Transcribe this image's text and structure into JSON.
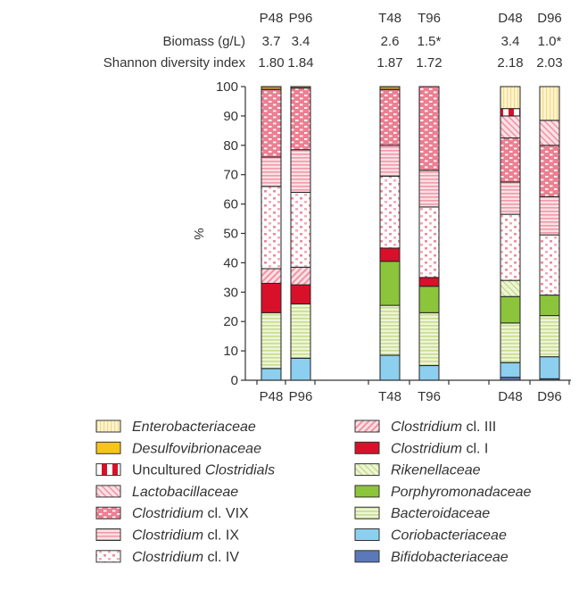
{
  "chart_data": {
    "type": "bar",
    "stacked": true,
    "ylabel": "%",
    "ylim": [
      0,
      100
    ],
    "yticks": [
      0,
      10,
      20,
      30,
      40,
      50,
      60,
      70,
      80,
      90,
      100
    ],
    "categories": [
      "P48",
      "P96",
      "T48",
      "T96",
      "D48",
      "D96"
    ],
    "header_rows": [
      {
        "label": "Biomass (g/L)",
        "values": [
          "3.7",
          "3.4",
          "2.6",
          "1.5*",
          "3.4",
          "1.0*"
        ]
      },
      {
        "label": "Shannon diversity index",
        "values": [
          "1.80",
          "1.84",
          "1.87",
          "1.72",
          "2.18",
          "2.03"
        ]
      }
    ],
    "series": [
      {
        "key": "bif",
        "name": "Bifidobacteriaceae",
        "color": "#5b78b8",
        "values": [
          0,
          0,
          0,
          0,
          1,
          0.5
        ]
      },
      {
        "key": "cor",
        "name": "Coriobacteriaceae",
        "color": "#8ccfef",
        "values": [
          4,
          7.5,
          8.5,
          5,
          5,
          7.5
        ]
      },
      {
        "key": "bac",
        "name": "Bacteroidaceae",
        "color": "#e6f0c8",
        "values": [
          19,
          18.5,
          17,
          18,
          13.5,
          14
        ]
      },
      {
        "key": "por",
        "name": "Porphyromonadaceae",
        "color": "#8cc43c",
        "values": [
          0,
          0,
          15,
          9,
          9,
          7
        ]
      },
      {
        "key": "rik",
        "name": "Rikenellaceae",
        "color": "#e6f0c8",
        "values": [
          0,
          0,
          0,
          0,
          5.5,
          0
        ]
      },
      {
        "key": "c1",
        "name": "Clostridium cl. I",
        "color": "#d9102a",
        "values": [
          10,
          6.5,
          4.5,
          3,
          0,
          0
        ]
      },
      {
        "key": "c3",
        "name": "Clostridium cl. III",
        "color": "#f4b8c2",
        "values": [
          5,
          6,
          0,
          0,
          0,
          0
        ]
      },
      {
        "key": "c4",
        "name": "Clostridium cl. IV",
        "color": "#fbe3e8",
        "values": [
          28,
          25.5,
          24.5,
          24,
          22.5,
          20.5
        ]
      },
      {
        "key": "c9",
        "name": "Clostridium cl. IX",
        "color": "#f8c8d0",
        "values": [
          10,
          14.5,
          10.5,
          12.5,
          11,
          13
        ]
      },
      {
        "key": "c19",
        "name": "Clostridium cl. VIX",
        "color": "#ee8a9a",
        "values": [
          23,
          21,
          19,
          28.5,
          15,
          17.5
        ]
      },
      {
        "key": "lac",
        "name": "Lactobacillaceae",
        "color": "#f6c4cc",
        "values": [
          0,
          0,
          0,
          0,
          7.5,
          8.5
        ]
      },
      {
        "key": "unc",
        "name": "Uncultured Clostridials",
        "color": "#d9102a",
        "values": [
          0,
          0,
          0,
          0,
          2.5,
          0
        ]
      },
      {
        "key": "des",
        "name": "Desulfovibrionaceae",
        "color": "#b8943c",
        "values": [
          1,
          0.5,
          1,
          0,
          0,
          0
        ]
      },
      {
        "key": "ent",
        "name": "Enterobacteriaceae",
        "color": "#fcefc0",
        "values": [
          0,
          0,
          0,
          0,
          7.5,
          11.5
        ]
      }
    ]
  },
  "legend": {
    "left": [
      {
        "key": "ent",
        "pre": "",
        "it": "Enterobacteriaceae",
        "post": ""
      },
      {
        "key": "desL",
        "pre": "",
        "it": "Desulfovibrionaceae",
        "post": ""
      },
      {
        "key": "unc",
        "pre": "Uncultured ",
        "it": "Clostridials",
        "post": ""
      },
      {
        "key": "lac",
        "pre": "",
        "it": "Lactobacillaceae",
        "post": ""
      },
      {
        "key": "c19",
        "pre": "",
        "it": "Clostridium",
        "post": " cl. VIX"
      },
      {
        "key": "c9",
        "pre": "",
        "it": "Clostridium",
        "post": " cl. IX"
      },
      {
        "key": "c4",
        "pre": "",
        "it": "Clostridium",
        "post": " cl. IV"
      }
    ],
    "right": [
      {
        "key": "c3",
        "pre": "",
        "it": "Clostridium",
        "post": " cl. III"
      },
      {
        "key": "c1",
        "pre": "",
        "it": "Clostridium",
        "post": " cl. I"
      },
      {
        "key": "rik",
        "pre": "",
        "it": "Rikenellaceae",
        "post": ""
      },
      {
        "key": "por",
        "pre": "",
        "it": "Porphyromonadaceae",
        "post": ""
      },
      {
        "key": "bac",
        "pre": "",
        "it": "Bacteroidaceae",
        "post": ""
      },
      {
        "key": "cor",
        "pre": "",
        "it": "Coriobacteriaceae",
        "post": ""
      },
      {
        "key": "bif",
        "pre": "",
        "it": "Bifidobacteriaceae",
        "post": ""
      }
    ]
  }
}
